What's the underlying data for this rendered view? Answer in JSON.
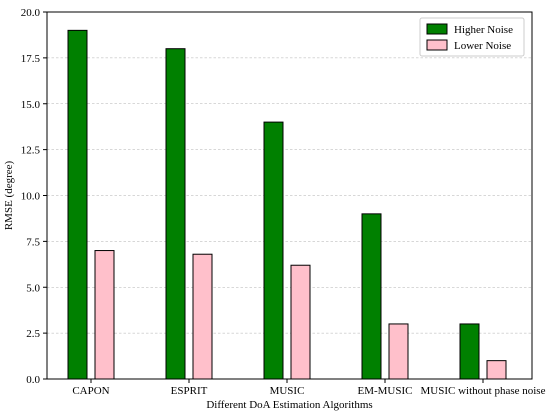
{
  "chart_data": {
    "type": "bar",
    "title": "",
    "xlabel": "Different DoA Estimation Algorithms",
    "ylabel": "RMSE (degree)",
    "categories": [
      "CAPON",
      "ESPRIT",
      "MUSIC",
      "EM-MUSIC",
      "MUSIC without phase noise"
    ],
    "series": [
      {
        "name": "Higher Noise",
        "values": [
          19.0,
          18.0,
          14.0,
          9.0,
          3.0
        ],
        "color": "#008000"
      },
      {
        "name": "Lower Noise",
        "values": [
          7.0,
          6.8,
          6.2,
          3.0,
          1.0
        ],
        "color": "#ffc0cb"
      }
    ],
    "ylim": [
      0,
      20
    ],
    "yticks": [
      "0.0",
      "2.5",
      "5.0",
      "7.5",
      "10.0",
      "12.5",
      "15.0",
      "17.5",
      "20.0"
    ],
    "grid": "y-dashed",
    "legend_position": "top-right",
    "edge_color": "#000000"
  }
}
